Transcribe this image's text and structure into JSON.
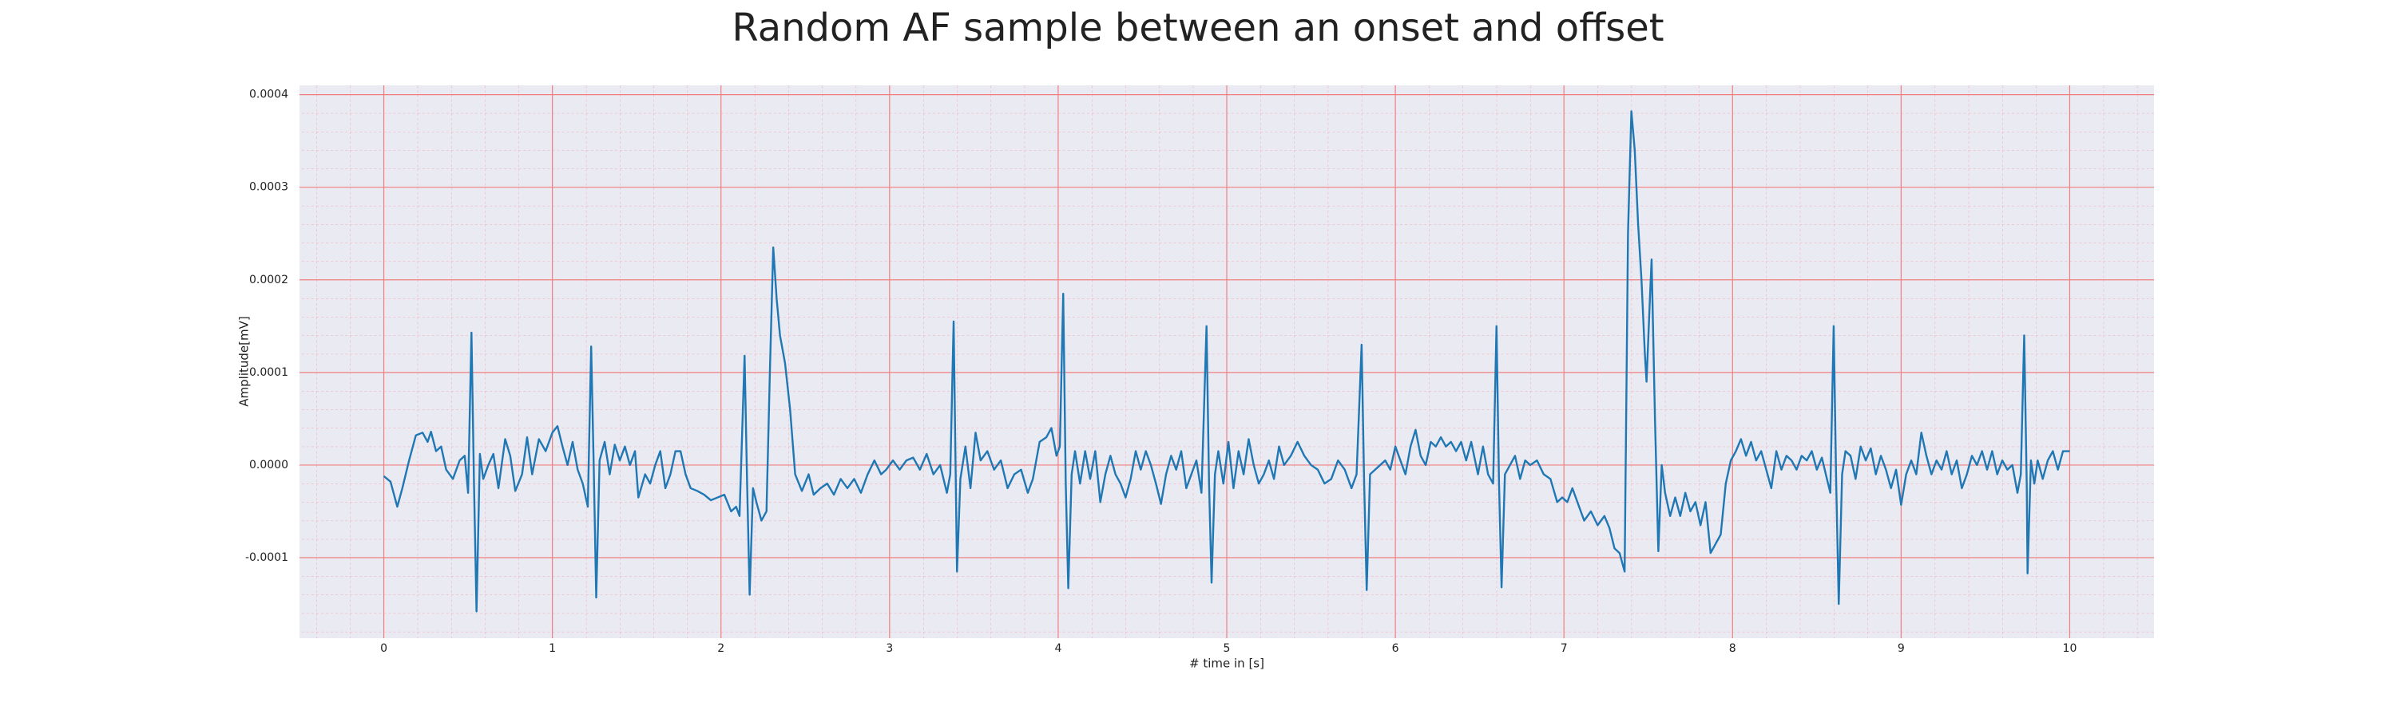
{
  "chart_data": {
    "type": "line",
    "title": "Random AF sample between an onset and offset",
    "x_label": "# time in [s]",
    "y_label": "Amplitude[mV]",
    "color": "#1f77b4",
    "grid": true,
    "minor_grid": true,
    "xlim": [
      -0.5,
      10.5
    ],
    "ylim": [
      -0.000187,
      0.00041
    ],
    "xticks": [
      0,
      1,
      2,
      3,
      4,
      5,
      6,
      7,
      8,
      9,
      10
    ],
    "yticks": [
      -0.0001,
      {
        "value": 0,
        "label": "0.0000"
      },
      0.0001,
      0.0002,
      0.0003,
      0.0004
    ],
    "x": [
      0.0,
      0.04,
      0.08,
      0.11,
      0.15,
      0.19,
      0.23,
      0.26,
      0.28,
      0.31,
      0.34,
      0.37,
      0.41,
      0.45,
      0.48,
      0.5,
      0.52,
      0.535,
      0.55,
      0.57,
      0.59,
      0.62,
      0.65,
      0.68,
      0.72,
      0.75,
      0.78,
      0.82,
      0.85,
      0.88,
      0.92,
      0.96,
      1.0,
      1.03,
      1.06,
      1.09,
      1.12,
      1.15,
      1.18,
      1.21,
      1.23,
      1.245,
      1.26,
      1.28,
      1.31,
      1.34,
      1.37,
      1.4,
      1.43,
      1.46,
      1.49,
      1.51,
      1.55,
      1.58,
      1.61,
      1.64,
      1.67,
      1.7,
      1.73,
      1.76,
      1.79,
      1.82,
      1.86,
      1.9,
      1.94,
      1.98,
      2.02,
      2.06,
      2.09,
      2.11,
      2.14,
      2.155,
      2.17,
      2.19,
      2.21,
      2.24,
      2.27,
      2.29,
      2.31,
      2.33,
      2.35,
      2.38,
      2.41,
      2.44,
      2.48,
      2.52,
      2.55,
      2.59,
      2.63,
      2.67,
      2.71,
      2.75,
      2.79,
      2.83,
      2.87,
      2.91,
      2.95,
      2.98,
      3.02,
      3.06,
      3.1,
      3.14,
      3.18,
      3.22,
      3.26,
      3.3,
      3.34,
      3.36,
      3.38,
      3.4,
      3.42,
      3.45,
      3.48,
      3.51,
      3.54,
      3.58,
      3.62,
      3.66,
      3.7,
      3.74,
      3.78,
      3.82,
      3.85,
      3.89,
      3.93,
      3.96,
      3.99,
      4.01,
      4.03,
      4.045,
      4.06,
      4.08,
      4.1,
      4.13,
      4.16,
      4.19,
      4.22,
      4.25,
      4.28,
      4.31,
      4.34,
      4.37,
      4.4,
      4.43,
      4.46,
      4.49,
      4.52,
      4.55,
      4.58,
      4.61,
      4.64,
      4.67,
      4.7,
      4.73,
      4.76,
      4.79,
      4.82,
      4.85,
      4.88,
      4.895,
      4.91,
      4.93,
      4.95,
      4.98,
      5.01,
      5.04,
      5.07,
      5.1,
      5.13,
      5.16,
      5.19,
      5.22,
      5.25,
      5.28,
      5.31,
      5.34,
      5.38,
      5.42,
      5.46,
      5.5,
      5.54,
      5.58,
      5.62,
      5.66,
      5.7,
      5.74,
      5.77,
      5.8,
      5.815,
      5.83,
      5.85,
      5.88,
      5.91,
      5.94,
      5.97,
      6.0,
      6.03,
      6.06,
      6.09,
      6.12,
      6.15,
      6.18,
      6.21,
      6.24,
      6.27,
      6.3,
      6.33,
      6.36,
      6.39,
      6.42,
      6.45,
      6.49,
      6.52,
      6.55,
      6.58,
      6.6,
      6.615,
      6.63,
      6.65,
      6.68,
      6.71,
      6.74,
      6.77,
      6.8,
      6.84,
      6.88,
      6.92,
      6.96,
      6.99,
      7.02,
      7.05,
      7.08,
      7.12,
      7.16,
      7.2,
      7.24,
      7.27,
      7.3,
      7.33,
      7.36,
      7.38,
      7.4,
      7.42,
      7.44,
      7.46,
      7.48,
      7.49,
      7.51,
      7.52,
      7.54,
      7.56,
      7.58,
      7.6,
      7.63,
      7.66,
      7.69,
      7.72,
      7.75,
      7.78,
      7.81,
      7.84,
      7.87,
      7.9,
      7.93,
      7.96,
      7.99,
      8.02,
      8.05,
      8.08,
      8.11,
      8.14,
      8.17,
      8.2,
      8.23,
      8.26,
      8.29,
      8.32,
      8.35,
      8.38,
      8.41,
      8.44,
      8.47,
      8.5,
      8.53,
      8.56,
      8.58,
      8.6,
      8.615,
      8.63,
      8.65,
      8.67,
      8.7,
      8.73,
      8.76,
      8.79,
      8.82,
      8.85,
      8.88,
      8.91,
      8.94,
      8.97,
      9.0,
      9.03,
      9.06,
      9.09,
      9.12,
      9.15,
      9.18,
      9.21,
      9.24,
      9.27,
      9.3,
      9.33,
      9.36,
      9.39,
      9.42,
      9.45,
      9.48,
      9.51,
      9.54,
      9.57,
      9.6,
      9.63,
      9.66,
      9.69,
      9.71,
      9.73,
      9.745,
      9.75,
      9.77,
      9.79,
      9.81,
      9.84,
      9.87,
      9.9,
      9.93,
      9.96,
      10.0
    ],
    "values": [
      -1.2e-05,
      -1.8e-05,
      -4.5e-05,
      -2.5e-05,
      5e-06,
      3.2e-05,
      3.5e-05,
      2.5e-05,
      3.6e-05,
      1.5e-05,
      2e-05,
      -5e-06,
      -1.5e-05,
      5e-06,
      1e-05,
      -3e-05,
      0.000143,
      -2e-05,
      -0.000158,
      1.2e-05,
      -1.5e-05,
      0,
      1.2e-05,
      -2.5e-05,
      2.8e-05,
      1e-05,
      -2.8e-05,
      -1e-05,
      3e-05,
      -1e-05,
      2.8e-05,
      1.5e-05,
      3.5e-05,
      4.2e-05,
      2e-05,
      0,
      2.5e-05,
      -5e-06,
      -2e-05,
      -4.5e-05,
      0.000128,
      0,
      -0.000143,
      5e-06,
      2.5e-05,
      -1e-05,
      2.2e-05,
      5e-06,
      2e-05,
      0,
      1.5e-05,
      -3.5e-05,
      -1e-05,
      -2e-05,
      0,
      1.5e-05,
      -2.5e-05,
      -1e-05,
      1.5e-05,
      1.5e-05,
      -1e-05,
      -2.5e-05,
      -2.8e-05,
      -3.2e-05,
      -3.8e-05,
      -3.5e-05,
      -3.2e-05,
      -5e-05,
      -4.5e-05,
      -5.5e-05,
      0.000118,
      -2e-05,
      -0.00014,
      -2.5e-05,
      -4e-05,
      -6e-05,
      -5e-05,
      0.0001,
      0.000235,
      0.00018,
      0.00014,
      0.00011,
      6e-05,
      -1e-05,
      -2.8e-05,
      -1e-05,
      -3.2e-05,
      -2.5e-05,
      -2e-05,
      -3.2e-05,
      -1.5e-05,
      -2.5e-05,
      -1.5e-05,
      -3e-05,
      -1e-05,
      5e-06,
      -1e-05,
      -5e-06,
      5e-06,
      -5e-06,
      5e-06,
      8e-06,
      -5e-06,
      1.2e-05,
      -1e-05,
      0,
      -3e-05,
      -1e-05,
      0.000155,
      -0.000115,
      -1.5e-05,
      2e-05,
      -2.5e-05,
      3.5e-05,
      5e-06,
      1.5e-05,
      -5e-06,
      5e-06,
      -2.5e-05,
      -1e-05,
      -5e-06,
      -3e-05,
      -1.5e-05,
      2.5e-05,
      3e-05,
      4e-05,
      1e-05,
      2e-05,
      0.000185,
      -2e-05,
      -0.000133,
      -1e-05,
      1.5e-05,
      -2e-05,
      1.5e-05,
      -1.5e-05,
      1.5e-05,
      -4e-05,
      -1e-05,
      1e-05,
      -1e-05,
      -2e-05,
      -3.5e-05,
      -1.5e-05,
      1.5e-05,
      -5e-06,
      1.5e-05,
      0,
      -2e-05,
      -4.2e-05,
      -1e-05,
      1e-05,
      -5e-06,
      1.5e-05,
      -2.5e-05,
      -1e-05,
      5e-06,
      -3e-05,
      0.00015,
      -2e-05,
      -0.000127,
      -1e-05,
      1.5e-05,
      -2e-05,
      2.5e-05,
      -2.5e-05,
      1.5e-05,
      -1e-05,
      2.8e-05,
      0,
      -2e-05,
      -1e-05,
      5e-06,
      -1.5e-05,
      2e-05,
      0,
      1e-05,
      2.5e-05,
      1e-05,
      0,
      -5e-06,
      -2e-05,
      -1.5e-05,
      5e-06,
      -5e-06,
      -2.5e-05,
      -1e-05,
      0.00013,
      -2e-05,
      -0.000135,
      -1e-05,
      -5e-06,
      0,
      5e-06,
      -5e-06,
      2e-05,
      5e-06,
      -1e-05,
      2e-05,
      3.8e-05,
      1e-05,
      0,
      2.5e-05,
      2e-05,
      3e-05,
      2e-05,
      2.5e-05,
      1.5e-05,
      2.5e-05,
      5e-06,
      2.5e-05,
      -1e-05,
      2e-05,
      -1e-05,
      -2e-05,
      0.00015,
      -2e-05,
      -0.000132,
      -1e-05,
      0,
      1e-05,
      -1.5e-05,
      5e-06,
      0,
      5e-06,
      -1e-05,
      -1.5e-05,
      -4e-05,
      -3.5e-05,
      -4e-05,
      -2.5e-05,
      -4e-05,
      -6e-05,
      -5e-05,
      -6.5e-05,
      -5.5e-05,
      -6.8e-05,
      -9e-05,
      -9.5e-05,
      -0.000115,
      0.00025,
      0.000382,
      0.00034,
      0.00026,
      0.0002,
      0.00012,
      9e-05,
      0.00018,
      0.000222,
      5e-05,
      -9.3e-05,
      0,
      -3e-05,
      -5.5e-05,
      -3.5e-05,
      -5.5e-05,
      -3e-05,
      -5e-05,
      -4e-05,
      -6.5e-05,
      -4e-05,
      -9.5e-05,
      -8.5e-05,
      -7.5e-05,
      -2e-05,
      5e-06,
      1.5e-05,
      2.8e-05,
      1e-05,
      2.5e-05,
      5e-06,
      1.5e-05,
      -5e-06,
      -2.5e-05,
      1.5e-05,
      -5e-06,
      1e-05,
      5e-06,
      -5e-06,
      1e-05,
      5e-06,
      1.5e-05,
      -5e-06,
      8e-06,
      -1.5e-05,
      -3e-05,
      0.00015,
      -2e-05,
      -0.00015,
      -1e-05,
      1.5e-05,
      1e-05,
      -1.5e-05,
      2e-05,
      5e-06,
      1.8e-05,
      -1e-05,
      1e-05,
      -5e-06,
      -2.5e-05,
      -5e-06,
      -4.3e-05,
      -1e-05,
      5e-06,
      -1e-05,
      3.5e-05,
      1e-05,
      -1e-05,
      5e-06,
      -5e-06,
      1.5e-05,
      -1e-05,
      5e-06,
      -2.5e-05,
      -1e-05,
      1e-05,
      0,
      1.5e-05,
      -5e-06,
      1.5e-05,
      -1e-05,
      5e-06,
      -5e-06,
      0,
      -3e-05,
      -1e-05,
      0.00014,
      -2e-05,
      -0.000117,
      5e-06,
      -2e-05,
      5e-06,
      -1.5e-05,
      5e-06,
      1.5e-05,
      -5e-06,
      1.5e-05,
      1.5e-05
    ]
  }
}
